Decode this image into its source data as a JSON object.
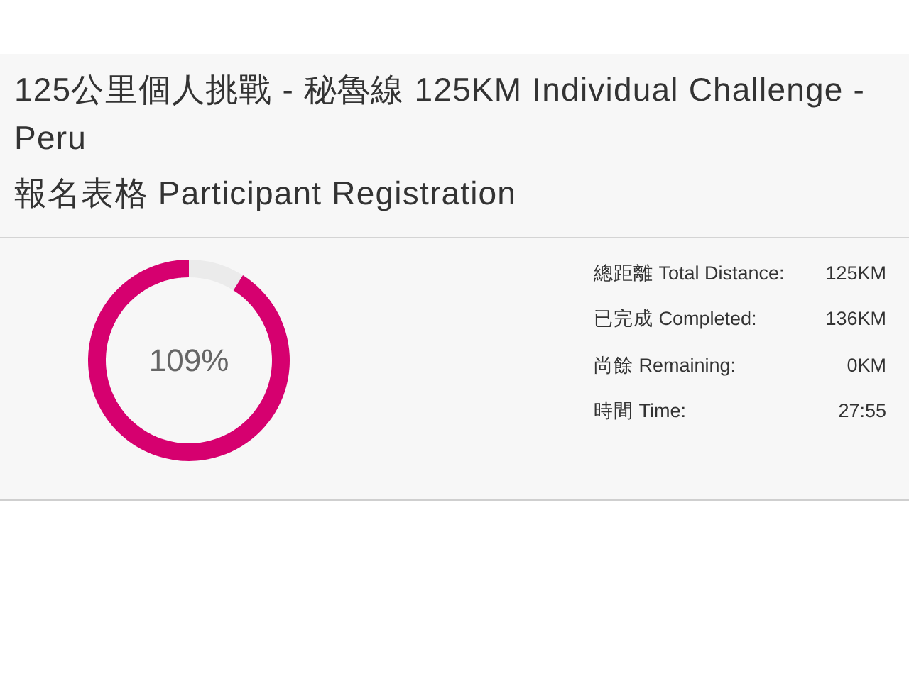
{
  "chart_data": [
    {
      "type": "donut",
      "title": "125公里個人挑戰 - 秘魯線 125KM Individual Challenge - Peru",
      "subtitle": "報名表格 Participant Registration",
      "categories": [
        null,
        null
      ],
      "values": [
        9,
        91
      ],
      "colors": [
        "#ebebeb",
        "#d6006f"
      ],
      "annotations": [
        "109%"
      ]
    },
    {
      "type": "other",
      "annotations": [
        "總距離 Total Distance:",
        "125KM",
        "已完成 Completed:",
        "136KM",
        "尚餘 Remaining:",
        "0KM",
        "時間 Time:",
        "27:55"
      ]
    }
  ]
}
